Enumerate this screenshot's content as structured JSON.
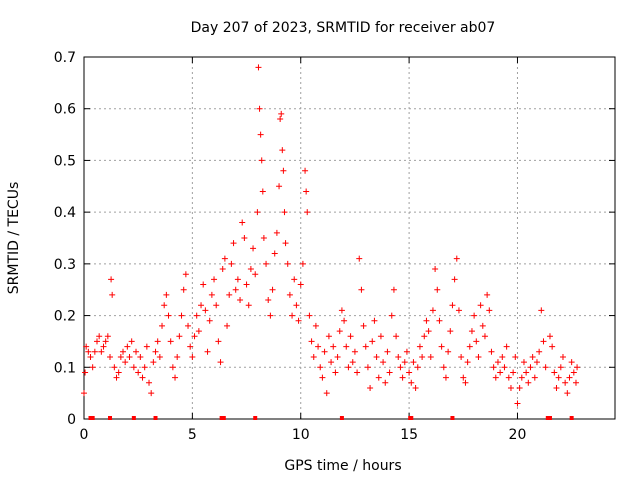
{
  "chart_data": {
    "type": "scatter",
    "title": "Day 207 of 2023, SRMTID for receiver ab07",
    "xlabel": "GPS time / hours",
    "ylabel": "SRMTID / TECUs",
    "xlim": [
      0,
      24.5
    ],
    "ylim": [
      0,
      0.7
    ],
    "xticks": [
      0,
      5,
      10,
      15,
      20
    ],
    "yticks": [
      0,
      0.1,
      0.2,
      0.3,
      0.4,
      0.5,
      0.6,
      0.7
    ],
    "grid": true,
    "marker": "+",
    "color": "#ff0000",
    "series": [
      {
        "name": "ab07",
        "points": [
          [
            0.0,
            0.05
          ],
          [
            0.05,
            0.09
          ],
          [
            0.1,
            0.14
          ],
          [
            0.2,
            0.13
          ],
          [
            0.3,
            0.12
          ],
          [
            0.4,
            0.1
          ],
          [
            0.5,
            0.13
          ],
          [
            0.6,
            0.15
          ],
          [
            0.7,
            0.16
          ],
          [
            0.8,
            0.13
          ],
          [
            0.9,
            0.14
          ],
          [
            1.0,
            0.15
          ],
          [
            1.1,
            0.16
          ],
          [
            1.2,
            0.12
          ],
          [
            1.25,
            0.27
          ],
          [
            1.3,
            0.24
          ],
          [
            1.4,
            0.1
          ],
          [
            1.5,
            0.08
          ],
          [
            1.6,
            0.09
          ],
          [
            1.7,
            0.12
          ],
          [
            1.8,
            0.13
          ],
          [
            1.9,
            0.11
          ],
          [
            2.0,
            0.14
          ],
          [
            2.1,
            0.12
          ],
          [
            2.2,
            0.15
          ],
          [
            2.3,
            0.1
          ],
          [
            2.4,
            0.13
          ],
          [
            2.5,
            0.09
          ],
          [
            2.6,
            0.12
          ],
          [
            2.7,
            0.08
          ],
          [
            2.8,
            0.1
          ],
          [
            2.9,
            0.14
          ],
          [
            3.0,
            0.07
          ],
          [
            3.1,
            0.05
          ],
          [
            3.2,
            0.11
          ],
          [
            3.3,
            0.13
          ],
          [
            3.4,
            0.15
          ],
          [
            3.5,
            0.12
          ],
          [
            3.6,
            0.18
          ],
          [
            3.7,
            0.22
          ],
          [
            3.8,
            0.24
          ],
          [
            3.9,
            0.2
          ],
          [
            4.0,
            0.15
          ],
          [
            4.1,
            0.1
          ],
          [
            4.2,
            0.08
          ],
          [
            4.3,
            0.12
          ],
          [
            4.4,
            0.16
          ],
          [
            4.5,
            0.2
          ],
          [
            4.6,
            0.25
          ],
          [
            4.7,
            0.28
          ],
          [
            4.8,
            0.18
          ],
          [
            4.9,
            0.14
          ],
          [
            5.0,
            0.12
          ],
          [
            5.1,
            0.16
          ],
          [
            5.2,
            0.2
          ],
          [
            5.3,
            0.17
          ],
          [
            5.4,
            0.22
          ],
          [
            5.5,
            0.26
          ],
          [
            5.6,
            0.21
          ],
          [
            5.7,
            0.13
          ],
          [
            5.8,
            0.19
          ],
          [
            5.9,
            0.24
          ],
          [
            6.0,
            0.27
          ],
          [
            6.1,
            0.22
          ],
          [
            6.2,
            0.15
          ],
          [
            6.3,
            0.11
          ],
          [
            6.4,
            0.29
          ],
          [
            6.5,
            0.31
          ],
          [
            6.6,
            0.18
          ],
          [
            6.7,
            0.24
          ],
          [
            6.8,
            0.3
          ],
          [
            6.9,
            0.34
          ],
          [
            7.0,
            0.25
          ],
          [
            7.1,
            0.27
          ],
          [
            7.2,
            0.23
          ],
          [
            7.3,
            0.38
          ],
          [
            7.4,
            0.35
          ],
          [
            7.5,
            0.26
          ],
          [
            7.6,
            0.22
          ],
          [
            7.7,
            0.29
          ],
          [
            7.8,
            0.33
          ],
          [
            7.9,
            0.28
          ],
          [
            8.0,
            0.4
          ],
          [
            8.05,
            0.68
          ],
          [
            8.1,
            0.6
          ],
          [
            8.15,
            0.55
          ],
          [
            8.2,
            0.5
          ],
          [
            8.25,
            0.44
          ],
          [
            8.3,
            0.35
          ],
          [
            8.4,
            0.3
          ],
          [
            8.5,
            0.23
          ],
          [
            8.6,
            0.2
          ],
          [
            8.7,
            0.25
          ],
          [
            8.8,
            0.32
          ],
          [
            8.9,
            0.36
          ],
          [
            9.0,
            0.45
          ],
          [
            9.05,
            0.58
          ],
          [
            9.1,
            0.59
          ],
          [
            9.15,
            0.52
          ],
          [
            9.2,
            0.48
          ],
          [
            9.25,
            0.4
          ],
          [
            9.3,
            0.34
          ],
          [
            9.4,
            0.3
          ],
          [
            9.5,
            0.24
          ],
          [
            9.6,
            0.2
          ],
          [
            9.7,
            0.27
          ],
          [
            9.8,
            0.22
          ],
          [
            9.9,
            0.19
          ],
          [
            10.0,
            0.26
          ],
          [
            10.1,
            0.3
          ],
          [
            10.2,
            0.48
          ],
          [
            10.25,
            0.44
          ],
          [
            10.3,
            0.4
          ],
          [
            10.4,
            0.2
          ],
          [
            10.5,
            0.15
          ],
          [
            10.6,
            0.12
          ],
          [
            10.7,
            0.18
          ],
          [
            10.8,
            0.14
          ],
          [
            10.9,
            0.1
          ],
          [
            11.0,
            0.08
          ],
          [
            11.1,
            0.13
          ],
          [
            11.2,
            0.05
          ],
          [
            11.3,
            0.16
          ],
          [
            11.4,
            0.11
          ],
          [
            11.5,
            0.14
          ],
          [
            11.6,
            0.09
          ],
          [
            11.7,
            0.12
          ],
          [
            11.8,
            0.17
          ],
          [
            11.9,
            0.21
          ],
          [
            12.0,
            0.19
          ],
          [
            12.1,
            0.14
          ],
          [
            12.2,
            0.1
          ],
          [
            12.3,
            0.16
          ],
          [
            12.4,
            0.11
          ],
          [
            12.5,
            0.13
          ],
          [
            12.6,
            0.09
          ],
          [
            12.7,
            0.31
          ],
          [
            12.8,
            0.25
          ],
          [
            12.9,
            0.18
          ],
          [
            13.0,
            0.14
          ],
          [
            13.1,
            0.1
          ],
          [
            13.2,
            0.06
          ],
          [
            13.3,
            0.15
          ],
          [
            13.4,
            0.19
          ],
          [
            13.5,
            0.12
          ],
          [
            13.6,
            0.08
          ],
          [
            13.7,
            0.16
          ],
          [
            13.8,
            0.11
          ],
          [
            13.9,
            0.07
          ],
          [
            14.0,
            0.13
          ],
          [
            14.1,
            0.09
          ],
          [
            14.2,
            0.2
          ],
          [
            14.3,
            0.25
          ],
          [
            14.4,
            0.16
          ],
          [
            14.5,
            0.12
          ],
          [
            14.6,
            0.1
          ],
          [
            14.7,
            0.08
          ],
          [
            14.8,
            0.11
          ],
          [
            14.9,
            0.13
          ],
          [
            15.0,
            0.09
          ],
          [
            15.1,
            0.07
          ],
          [
            15.2,
            0.11
          ],
          [
            15.3,
            0.06
          ],
          [
            15.4,
            0.1
          ],
          [
            15.5,
            0.14
          ],
          [
            15.6,
            0.12
          ],
          [
            15.7,
            0.16
          ],
          [
            15.8,
            0.19
          ],
          [
            15.9,
            0.17
          ],
          [
            16.0,
            0.12
          ],
          [
            16.1,
            0.21
          ],
          [
            16.2,
            0.29
          ],
          [
            16.3,
            0.25
          ],
          [
            16.4,
            0.19
          ],
          [
            16.5,
            0.14
          ],
          [
            16.6,
            0.1
          ],
          [
            16.7,
            0.08
          ],
          [
            16.8,
            0.13
          ],
          [
            16.9,
            0.17
          ],
          [
            17.0,
            0.22
          ],
          [
            17.1,
            0.27
          ],
          [
            17.2,
            0.31
          ],
          [
            17.3,
            0.21
          ],
          [
            17.4,
            0.12
          ],
          [
            17.5,
            0.08
          ],
          [
            17.6,
            0.07
          ],
          [
            17.7,
            0.11
          ],
          [
            17.8,
            0.14
          ],
          [
            17.9,
            0.17
          ],
          [
            18.0,
            0.2
          ],
          [
            18.1,
            0.15
          ],
          [
            18.2,
            0.12
          ],
          [
            18.3,
            0.22
          ],
          [
            18.4,
            0.18
          ],
          [
            18.5,
            0.16
          ],
          [
            18.6,
            0.24
          ],
          [
            18.7,
            0.21
          ],
          [
            18.8,
            0.13
          ],
          [
            18.9,
            0.1
          ],
          [
            19.0,
            0.08
          ],
          [
            19.1,
            0.11
          ],
          [
            19.2,
            0.09
          ],
          [
            19.3,
            0.12
          ],
          [
            19.4,
            0.1
          ],
          [
            19.5,
            0.14
          ],
          [
            19.6,
            0.08
          ],
          [
            19.7,
            0.06
          ],
          [
            19.8,
            0.09
          ],
          [
            19.9,
            0.12
          ],
          [
            20.0,
            0.03
          ],
          [
            20.1,
            0.06
          ],
          [
            20.2,
            0.08
          ],
          [
            20.3,
            0.11
          ],
          [
            20.4,
            0.09
          ],
          [
            20.5,
            0.07
          ],
          [
            20.6,
            0.1
          ],
          [
            20.7,
            0.12
          ],
          [
            20.8,
            0.08
          ],
          [
            20.9,
            0.11
          ],
          [
            21.0,
            0.13
          ],
          [
            21.1,
            0.21
          ],
          [
            21.2,
            0.15
          ],
          [
            21.3,
            0.1
          ],
          [
            21.5,
            0.16
          ],
          [
            21.6,
            0.14
          ],
          [
            21.7,
            0.09
          ],
          [
            21.8,
            0.06
          ],
          [
            21.9,
            0.08
          ],
          [
            22.0,
            0.1
          ],
          [
            22.1,
            0.12
          ],
          [
            22.2,
            0.07
          ],
          [
            22.3,
            0.05
          ],
          [
            22.4,
            0.08
          ],
          [
            22.5,
            0.11
          ],
          [
            22.6,
            0.09
          ],
          [
            22.7,
            0.07
          ],
          [
            22.75,
            0.1
          ]
        ]
      }
    ],
    "gap_markers_x": [
      0.3,
      0.4,
      1.2,
      2.3,
      3.3,
      6.35,
      6.45,
      7.9,
      11.9,
      15.05,
      15.1,
      17.0,
      21.4,
      21.5,
      22.5
    ]
  }
}
